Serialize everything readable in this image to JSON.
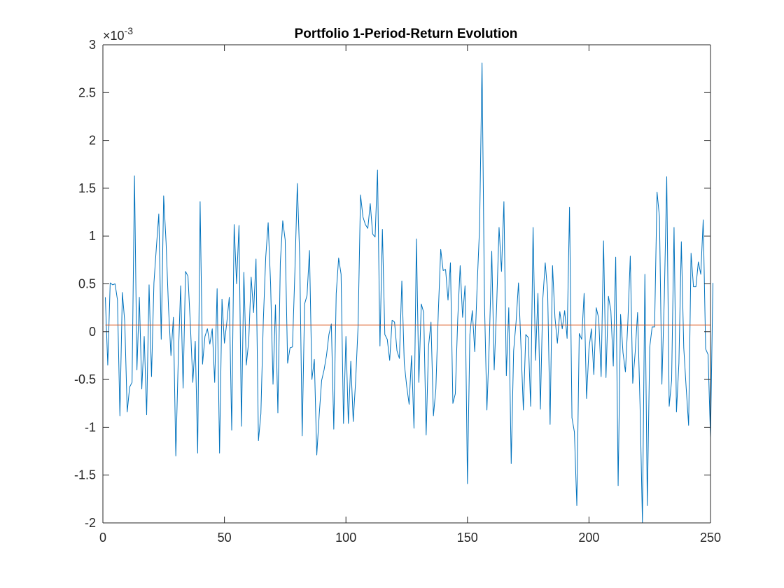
{
  "chart_data": {
    "type": "line",
    "title": "Portfolio 1-Period-Return Evolution",
    "xlabel": "",
    "ylabel": "",
    "xlim": [
      0,
      250
    ],
    "ylim": [
      -2,
      3
    ],
    "y_exponent_label": "×10",
    "y_exponent_power": "-3",
    "x_ticks": [
      0,
      50,
      100,
      150,
      200,
      250
    ],
    "x_tick_labels": [
      "0",
      "50",
      "100",
      "150",
      "200",
      "250"
    ],
    "y_ticks": [
      -2,
      -1.5,
      -1,
      -0.5,
      0,
      0.5,
      1,
      1.5,
      2,
      2.5,
      3
    ],
    "y_tick_labels": [
      "-2",
      "-1.5",
      "-1",
      "-0.5",
      "0",
      "0.5",
      "1",
      "1.5",
      "2",
      "2.5",
      "3"
    ],
    "grid": false,
    "series": [
      {
        "color": "#0072BD",
        "x_start": 1,
        "x_step": 1,
        "values": [
          0.36,
          -0.35,
          0.51,
          0.49,
          0.5,
          0.33,
          -0.88,
          0.41,
          0.1,
          -0.84,
          -0.58,
          -0.53,
          1.63,
          -0.4,
          0.36,
          -0.6,
          -0.05,
          -0.87,
          0.49,
          -0.47,
          0.51,
          0.88,
          1.23,
          -0.08,
          1.42,
          0.93,
          0.25,
          -0.25,
          0.15,
          -1.3,
          -0.3,
          0.48,
          -0.59,
          0.63,
          0.58,
          0.07,
          -0.53,
          -0.1,
          -1.27,
          1.36,
          -0.34,
          -0.05,
          0.03,
          -0.13,
          0.03,
          -0.53,
          0.45,
          -1.27,
          0.34,
          -0.12,
          0.1,
          0.36,
          -1.03,
          1.12,
          0.5,
          1.11,
          -0.99,
          0.62,
          -0.35,
          -0.1,
          0.57,
          0.2,
          0.76,
          -1.14,
          -0.86,
          0.11,
          0.78,
          1.14,
          0.5,
          -0.55,
          0.28,
          -0.85,
          0.72,
          1.16,
          0.96,
          -0.33,
          -0.17,
          -0.16,
          0.63,
          1.55,
          0.76,
          -1.09,
          0.29,
          0.38,
          0.85,
          -0.5,
          -0.29,
          -1.29,
          -0.87,
          -0.51,
          -0.4,
          -0.25,
          -0.03,
          0.08,
          -1.02,
          0.4,
          0.77,
          0.6,
          -0.96,
          -0.05,
          -0.96,
          -0.31,
          -0.94,
          -0.51,
          0.06,
          1.43,
          1.2,
          1.12,
          1.08,
          1.34,
          1.02,
          0.99,
          1.69,
          -0.15,
          1.07,
          -0.03,
          -0.08,
          -0.3,
          0.12,
          0.1,
          -0.2,
          -0.28,
          0.53,
          -0.33,
          -0.57,
          -0.76,
          -0.25,
          -1.01,
          0.97,
          -0.53,
          0.29,
          0.2,
          -1.08,
          -0.15,
          0.1,
          -0.88,
          -0.6,
          0.2,
          0.86,
          0.64,
          0.65,
          0.33,
          0.72,
          -0.75,
          -0.65,
          0.13,
          0.69,
          0.15,
          0.48,
          -1.59,
          -0.03,
          0.22,
          -0.21,
          0.49,
          1.1,
          2.81,
          0.31,
          -0.82,
          -0.1,
          0.84,
          -0.4,
          0.26,
          1.09,
          0.63,
          1.36,
          -0.46,
          0.25,
          -1.38,
          -0.2,
          0.1,
          0.51,
          -0.14,
          -0.82,
          -0.03,
          -0.06,
          -0.78,
          1.09,
          -0.3,
          0.4,
          -0.81,
          0.34,
          0.72,
          0.41,
          -0.97,
          0.69,
          0.15,
          -0.12,
          0.21,
          0.03,
          0.22,
          -0.07,
          1.3,
          -0.9,
          -1.05,
          -1.82,
          -0.02,
          -0.08,
          0.4,
          -0.7,
          -0.18,
          0.03,
          -0.45,
          0.25,
          0.14,
          -0.47,
          0.95,
          -0.48,
          0.37,
          0.22,
          -0.36,
          0.78,
          -1.61,
          0.18,
          -0.22,
          -0.42,
          0.1,
          0.79,
          -0.54,
          -0.22,
          0.2,
          -0.76,
          -2.0,
          0.6,
          -1.82,
          -0.16,
          0.05,
          0.05,
          1.46,
          1.2,
          -0.55,
          0.36,
          1.62,
          -0.78,
          -0.51,
          1.09,
          -0.84,
          -0.33,
          0.94,
          -0.17,
          -0.59,
          -0.98,
          0.82,
          0.47,
          0.47,
          0.73,
          0.6,
          1.17,
          -0.18,
          -0.24,
          -1.11,
          0.51
        ]
      },
      {
        "color": "#D95319",
        "x": [
          1,
          250
        ],
        "values": [
          0.07,
          0.07
        ]
      }
    ]
  }
}
